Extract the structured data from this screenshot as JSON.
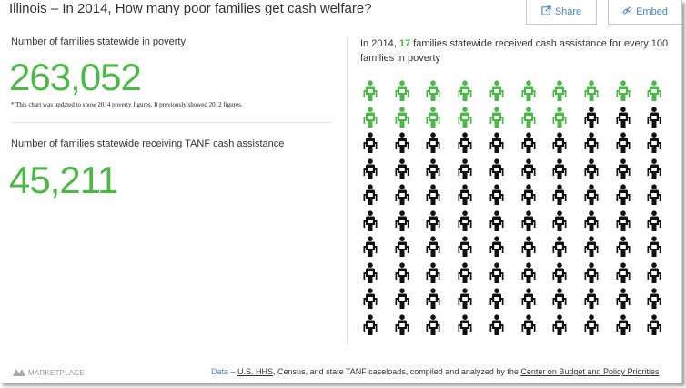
{
  "title": "Illinois – In 2014, How many poor families get cash welfare?",
  "buttons": {
    "share_label": "Share",
    "embed_label": "Embed"
  },
  "stat_poverty": {
    "label": "Number of families statewide in poverty",
    "value": "263,052",
    "footnote": "* This chart was updated to show 2014 poverty figures. It previously showed 2012 figures."
  },
  "stat_tanf": {
    "label": "Number of families statewide receiving TANF cash assistance",
    "value": "45,211"
  },
  "infographic": {
    "prefix": "In 2014,",
    "highlight": "17",
    "suffix": "families statewide received cash assistance for every 100 families in poverty",
    "total_icons": 100,
    "highlighted_icons": 17,
    "columns": 10,
    "highlight_color": "#4cb848",
    "base_color": "#111111"
  },
  "footer": {
    "logo_text": "MARKETPLACE",
    "data_link": "Data",
    "dash": " – ",
    "hhs": "U.S. HHS",
    "middle": ", Census, and state TANF caseloads, compiled and analyzed by the ",
    "cbpp": "Center on Budget and Policy Priorities"
  },
  "colors": {
    "accent_green": "#4cb848",
    "link_blue": "#4a86c5"
  }
}
